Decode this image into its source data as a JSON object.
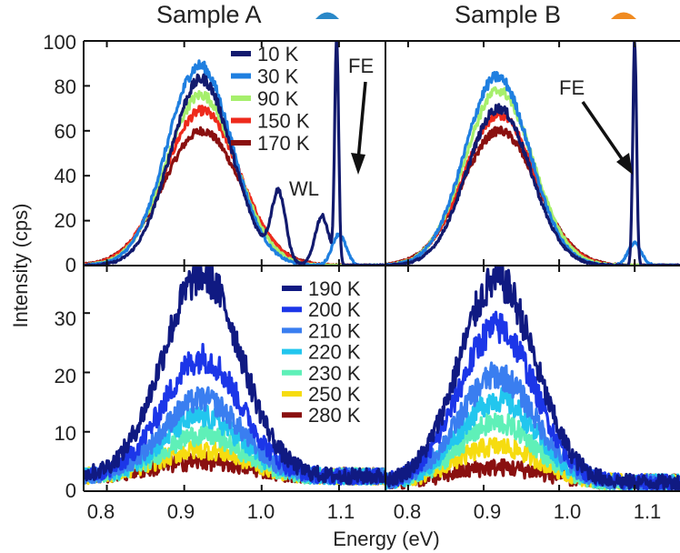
{
  "chart_data": [
    {
      "type": "line",
      "title": "Sample A",
      "xlabel": "Energy (eV)",
      "ylabel": "Intensity (cps)",
      "xlim": [
        0.77,
        1.16
      ],
      "ylim": [
        0,
        100
      ],
      "xticks": [
        "0.8",
        "0.9",
        "1.0",
        "1.1"
      ],
      "yticks": [
        "0",
        "20",
        "40",
        "60",
        "80",
        "100"
      ],
      "legend_position": "top-right",
      "annotations": [
        {
          "text": "WL",
          "x": 1.03,
          "y": 34
        },
        {
          "text": "FE",
          "x": 1.135,
          "y": 88,
          "arrow_to": {
            "x": 1.12,
            "y": 42
          }
        }
      ],
      "series": [
        {
          "name": "10 K",
          "color": "#121a6e",
          "peak": 83,
          "center": 0.922,
          "sigma": 0.04,
          "features": [
            {
              "center": 1.022,
              "amplitude": 30
            },
            {
              "center": 1.078,
              "amplitude": 22
            },
            {
              "center": 1.097,
              "amplitude": 100
            }
          ]
        },
        {
          "name": "30 K",
          "color": "#1f7fe0",
          "peak": 89,
          "center": 0.92,
          "sigma": 0.042,
          "features": [
            {
              "center": 1.1,
              "amplitude": 14
            }
          ]
        },
        {
          "name": "90 K",
          "color": "#a6ef6c",
          "peak": 76,
          "center": 0.922,
          "sigma": 0.045,
          "features": []
        },
        {
          "name": "150 K",
          "color": "#ee2a1c",
          "peak": 69,
          "center": 0.923,
          "sigma": 0.048,
          "features": []
        },
        {
          "name": "170 K",
          "color": "#8a1010",
          "peak": 60,
          "center": 0.923,
          "sigma": 0.05,
          "features": []
        }
      ]
    },
    {
      "type": "line",
      "title": "Sample B",
      "xlabel": "Energy (eV)",
      "ylabel": "Intensity (cps)",
      "xlim": [
        0.77,
        1.16
      ],
      "ylim": [
        0,
        100
      ],
      "xticks": [
        "0.8",
        "0.9",
        "1.0",
        "1.1"
      ],
      "annotations": [
        {
          "text": "FE",
          "x": 1.035,
          "y": 80,
          "arrow_to": {
            "x": 1.085,
            "y": 40
          }
        }
      ],
      "series": [
        {
          "name": "10 K",
          "color": "#121a6e",
          "peak": 70,
          "center": 0.92,
          "sigma": 0.042,
          "features": [
            {
              "center": 1.1,
              "amplitude": 100
            }
          ]
        },
        {
          "name": "30 K",
          "color": "#1f7fe0",
          "peak": 84,
          "center": 0.918,
          "sigma": 0.043,
          "features": [
            {
              "center": 1.1,
              "amplitude": 10
            }
          ]
        },
        {
          "name": "90 K",
          "color": "#a6ef6c",
          "peak": 78,
          "center": 0.92,
          "sigma": 0.045,
          "features": []
        },
        {
          "name": "150 K",
          "color": "#ee2a1c",
          "peak": 67,
          "center": 0.921,
          "sigma": 0.047,
          "features": []
        },
        {
          "name": "170 K",
          "color": "#8a1010",
          "peak": 60,
          "center": 0.921,
          "sigma": 0.049,
          "features": []
        }
      ]
    },
    {
      "type": "line",
      "xlabel": "Energy (eV)",
      "ylabel": "Intensity (cps)",
      "xlim": [
        0.77,
        1.16
      ],
      "ylim": [
        0,
        38
      ],
      "xticks": [
        "0.8",
        "0.9",
        "1.0",
        "1.1"
      ],
      "yticks": [
        "0",
        "10",
        "20",
        "30"
      ],
      "legend_position": "top-right",
      "series": [
        {
          "name": "190 K",
          "color": "#101a82",
          "peak": 34,
          "center": 0.923,
          "sigma": 0.05,
          "baseline": 2.5
        },
        {
          "name": "200 K",
          "color": "#1c36e8",
          "peak": 20,
          "center": 0.923,
          "sigma": 0.05,
          "baseline": 2.5
        },
        {
          "name": "210 K",
          "color": "#3a7ef0",
          "peak": 13,
          "center": 0.923,
          "sigma": 0.05,
          "baseline": 2.5
        },
        {
          "name": "220 K",
          "color": "#22c6ee",
          "peak": 10,
          "center": 0.923,
          "sigma": 0.05,
          "baseline": 2.5
        },
        {
          "name": "230 K",
          "color": "#5ff0b8",
          "peak": 7,
          "center": 0.923,
          "sigma": 0.05,
          "baseline": 2.5
        },
        {
          "name": "250 K",
          "color": "#f6dc10",
          "peak": 4.5,
          "center": 0.923,
          "sigma": 0.055,
          "baseline": 2.5
        },
        {
          "name": "280 K",
          "color": "#8a1010",
          "peak": 2.5,
          "center": 0.923,
          "sigma": 0.06,
          "baseline": 2.5
        }
      ]
    },
    {
      "type": "line",
      "xlabel": "Energy (eV)",
      "ylabel": "Intensity (cps)",
      "xlim": [
        0.77,
        1.16
      ],
      "ylim": [
        0,
        38
      ],
      "xticks": [
        "0.8",
        "0.9",
        "1.0",
        "1.1"
      ],
      "series": [
        {
          "name": "190 K",
          "color": "#101a82",
          "peak": 34,
          "center": 0.918,
          "sigma": 0.05,
          "baseline": 1.5
        },
        {
          "name": "200 K",
          "color": "#1c36e8",
          "peak": 26,
          "center": 0.918,
          "sigma": 0.05,
          "baseline": 1.5
        },
        {
          "name": "210 K",
          "color": "#3a7ef0",
          "peak": 18,
          "center": 0.918,
          "sigma": 0.05,
          "baseline": 1.5
        },
        {
          "name": "220 K",
          "color": "#22c6ee",
          "peak": 14,
          "center": 0.918,
          "sigma": 0.05,
          "baseline": 1.5
        },
        {
          "name": "230 K",
          "color": "#5ff0b8",
          "peak": 10,
          "center": 0.918,
          "sigma": 0.05,
          "baseline": 1.5
        },
        {
          "name": "250 K",
          "color": "#f6dc10",
          "peak": 6,
          "center": 0.918,
          "sigma": 0.055,
          "baseline": 1.5
        },
        {
          "name": "280 K",
          "color": "#8a1010",
          "peak": 2.5,
          "center": 0.918,
          "sigma": 0.06,
          "baseline": 1.5
        }
      ]
    }
  ],
  "sample_icons": [
    {
      "color": "#2a88c8"
    },
    {
      "color": "#f08a20"
    }
  ]
}
